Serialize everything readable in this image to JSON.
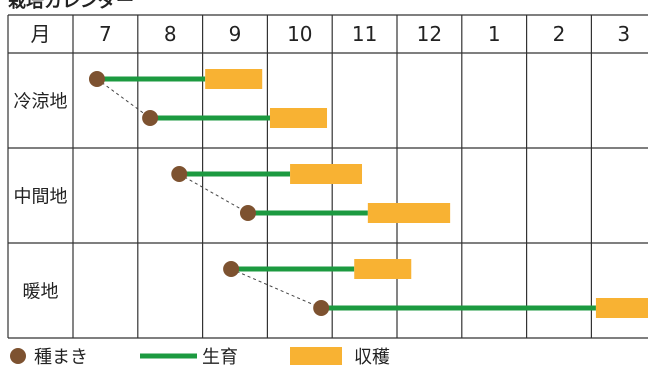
{
  "chart_data": {
    "type": "bar",
    "title": "栽培カレンダー",
    "header_label": "月",
    "categories": [
      "7",
      "8",
      "9",
      "10",
      "11",
      "12",
      "1",
      "2",
      "3"
    ],
    "rows": [
      {
        "label": "冷涼地",
        "entries": [
          {
            "sow": {
              "month": 7,
              "frac": 0.37
            },
            "harvest_start": {
              "month": 9,
              "frac": 0.04
            },
            "harvest_end": {
              "month": 9,
              "frac": 0.92
            }
          },
          {
            "sow": {
              "month": 8,
              "frac": 0.19
            },
            "harvest_start": {
              "month": 10,
              "frac": 0.04
            },
            "harvest_end": {
              "month": 10,
              "frac": 0.92
            }
          }
        ]
      },
      {
        "label": "中間地",
        "entries": [
          {
            "sow": {
              "month": 8,
              "frac": 0.64
            },
            "harvest_start": {
              "month": 10,
              "frac": 0.35
            },
            "harvest_end": {
              "month": 11,
              "frac": 0.46
            }
          },
          {
            "sow": {
              "month": 9,
              "frac": 0.7
            },
            "harvest_start": {
              "month": 11,
              "frac": 0.55
            },
            "harvest_end": {
              "month": 12,
              "frac": 0.82
            }
          }
        ]
      },
      {
        "label": "暖地",
        "entries": [
          {
            "sow": {
              "month": 9,
              "frac": 0.44
            },
            "harvest_start": {
              "month": 11,
              "frac": 0.34
            },
            "harvest_end": {
              "month": 12,
              "frac": 0.22
            }
          },
          {
            "sow": {
              "month": 10,
              "frac": 0.83
            },
            "harvest_start": {
              "month": 3,
              "frac": 0.07
            },
            "harvest_end": {
              "month": 3,
              "frac": 1.0
            }
          }
        ]
      }
    ],
    "legend": {
      "sow": "種まき",
      "grow": "生育",
      "harvest": "収穫"
    }
  },
  "colors": {
    "sow": "#7d5230",
    "grow": "#1c9a40",
    "harvest": "#f8b233",
    "grid": "#333333",
    "connector": "#444444"
  }
}
